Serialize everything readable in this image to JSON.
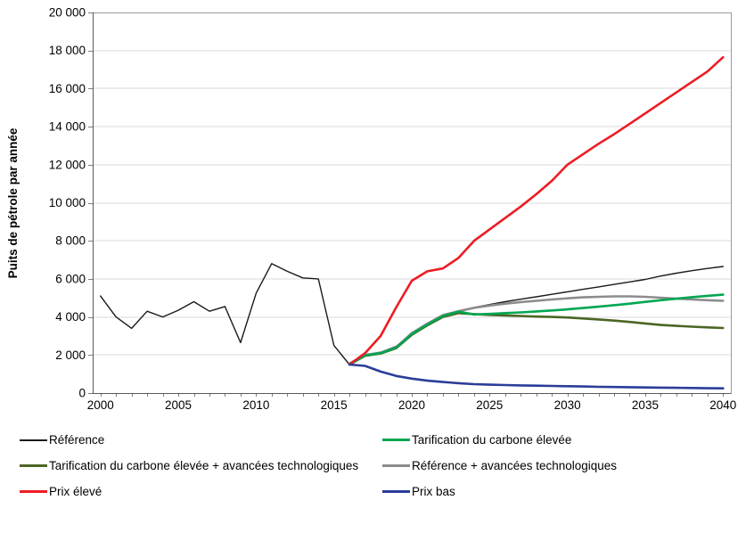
{
  "chart_data": {
    "type": "line",
    "title": "",
    "ylabel": "Puits de pétrole par année",
    "xlabel": "",
    "ylim": [
      0,
      20000
    ],
    "y_tick_step": 2000,
    "y_tick_labels": [
      "0",
      "2 000",
      "4 000",
      "6 000",
      "8 000",
      "10 000",
      "12 000",
      "14 000",
      "16 000",
      "18 000",
      "20 000"
    ],
    "x_range": [
      2000,
      2040
    ],
    "x_tick_labels": [
      "2000",
      "2005",
      "2010",
      "2015",
      "2020",
      "2025",
      "2030",
      "2035",
      "2040"
    ],
    "grid": "horizontal",
    "legend_position": "bottom-two-columns",
    "series": [
      {
        "name": "Référence",
        "color": "#1a1a1a",
        "width": 1.4,
        "start_year": 2000,
        "values": [
          5100,
          4000,
          3400,
          4300,
          4000,
          4350,
          4800,
          4300,
          4550,
          2650,
          5250,
          6800,
          6400,
          6050,
          6000,
          2500,
          1500,
          2000,
          2150,
          2450,
          3150,
          3650,
          4100,
          4300,
          4500,
          4650,
          4800,
          4930,
          5060,
          5190,
          5320,
          5450,
          5580,
          5710,
          5840,
          5970,
          6150,
          6300,
          6430,
          6550,
          6650
        ]
      },
      {
        "name": "Tarification du carbone élevée",
        "color": "#00a651",
        "width": 2.6,
        "start_year": 2016,
        "values": [
          1500,
          1980,
          2100,
          2380,
          3100,
          3600,
          4050,
          4280,
          4130,
          4160,
          4200,
          4240,
          4290,
          4340,
          4400,
          4470,
          4540,
          4620,
          4700,
          4790,
          4880,
          4960,
          5040,
          5110,
          5170
        ]
      },
      {
        "name": "Tarification du carbone élevée + avancées technologiques",
        "color": "#4b6623",
        "width": 2.6,
        "start_year": 2016,
        "values": [
          1500,
          1960,
          2080,
          2360,
          3060,
          3560,
          4000,
          4200,
          4150,
          4110,
          4080,
          4050,
          4020,
          4000,
          3970,
          3920,
          3870,
          3810,
          3740,
          3660,
          3580,
          3530,
          3490,
          3450,
          3420
        ]
      },
      {
        "name": "Référence + avancées technologiques",
        "color": "#8c8c8c",
        "width": 2.6,
        "start_year": 2016,
        "values": [
          1550,
          2000,
          2120,
          2400,
          3150,
          3650,
          4100,
          4300,
          4480,
          4600,
          4700,
          4780,
          4850,
          4920,
          4980,
          5030,
          5060,
          5080,
          5080,
          5060,
          5010,
          4960,
          4920,
          4880,
          4850
        ]
      },
      {
        "name": "Prix élevé",
        "color": "#ed1c24",
        "width": 2.6,
        "start_year": 2016,
        "values": [
          1500,
          2100,
          3000,
          4500,
          5900,
          6400,
          6550,
          7100,
          8000,
          8600,
          9200,
          9800,
          10450,
          11150,
          12000,
          12550,
          13100,
          13600,
          14150,
          14700,
          15250,
          15800,
          16350,
          16900,
          17650
        ]
      },
      {
        "name": "Prix bas",
        "color": "#2b3d99",
        "width": 2.6,
        "start_year": 2016,
        "values": [
          1500,
          1430,
          1130,
          900,
          760,
          650,
          580,
          520,
          470,
          440,
          420,
          405,
          390,
          375,
          360,
          345,
          330,
          320,
          310,
          295,
          285,
          275,
          265,
          255,
          250
        ]
      }
    ],
    "colors": {
      "plot_border": "#9a9a9a",
      "axis_line": "#595959",
      "tick": "#7f7f7f",
      "gridline": "#d9d9d9",
      "background": "#ffffff",
      "text": "#000000"
    }
  }
}
